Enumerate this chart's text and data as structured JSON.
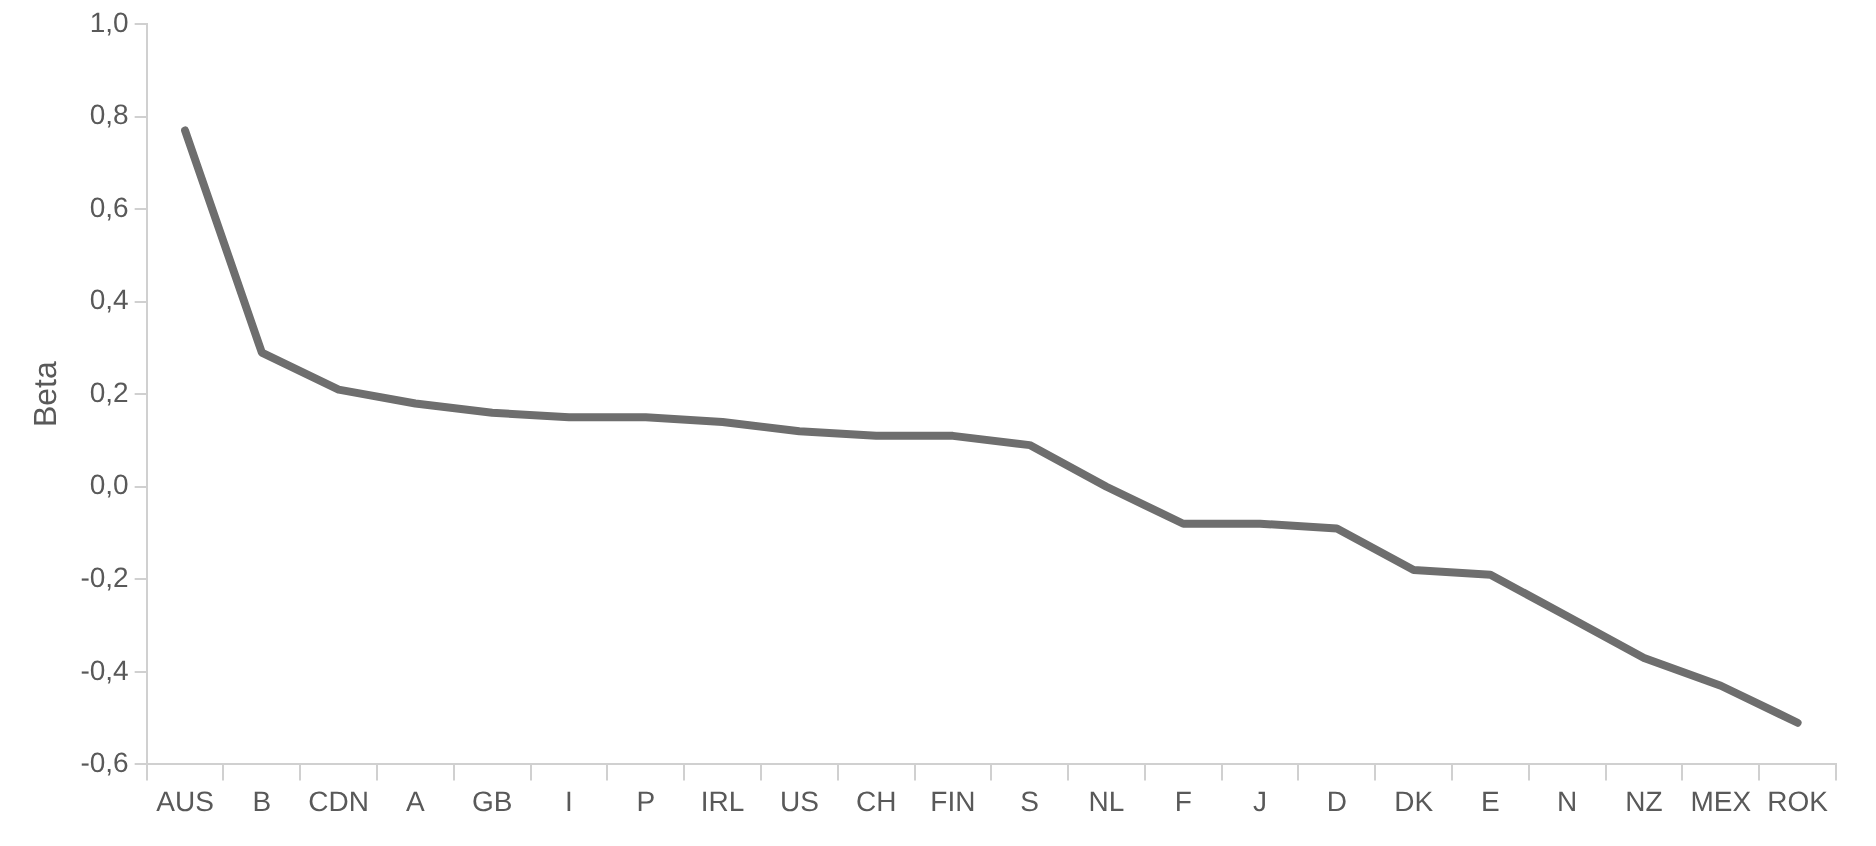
{
  "chart_data": {
    "type": "line",
    "ylabel": "Beta",
    "categories": [
      "AUS",
      "B",
      "CDN",
      "A",
      "GB",
      "I",
      "P",
      "IRL",
      "US",
      "CH",
      "FIN",
      "S",
      "NL",
      "F",
      "J",
      "D",
      "DK",
      "E",
      "N",
      "NZ",
      "MEX",
      "ROK"
    ],
    "series": [
      {
        "color": "#6e6e6e",
        "values": [
          0.77,
          0.29,
          0.21,
          0.18,
          0.16,
          0.15,
          0.15,
          0.14,
          0.12,
          0.11,
          0.11,
          0.09,
          0.0,
          -0.08,
          -0.08,
          -0.09,
          -0.18,
          -0.19,
          -0.28,
          -0.37,
          -0.43,
          -0.51
        ]
      }
    ],
    "ylim": [
      -0.6,
      1.0
    ],
    "yticks": [
      {
        "value": -0.6,
        "label": "-0,6"
      },
      {
        "value": -0.4,
        "label": "-0,4"
      },
      {
        "value": -0.2,
        "label": "-0,2"
      },
      {
        "value": 0,
        "label": "0,0"
      },
      {
        "value": 0.2,
        "label": "0,2"
      },
      {
        "value": 0.4,
        "label": "0,4"
      },
      {
        "value": 0.6,
        "label": "0,6"
      },
      {
        "value": 0.8,
        "label": "0,8"
      },
      {
        "value": 1.0,
        "label": "1,0"
      }
    ],
    "grid": false,
    "legend": false,
    "marker": "none",
    "line_style": "solid"
  }
}
